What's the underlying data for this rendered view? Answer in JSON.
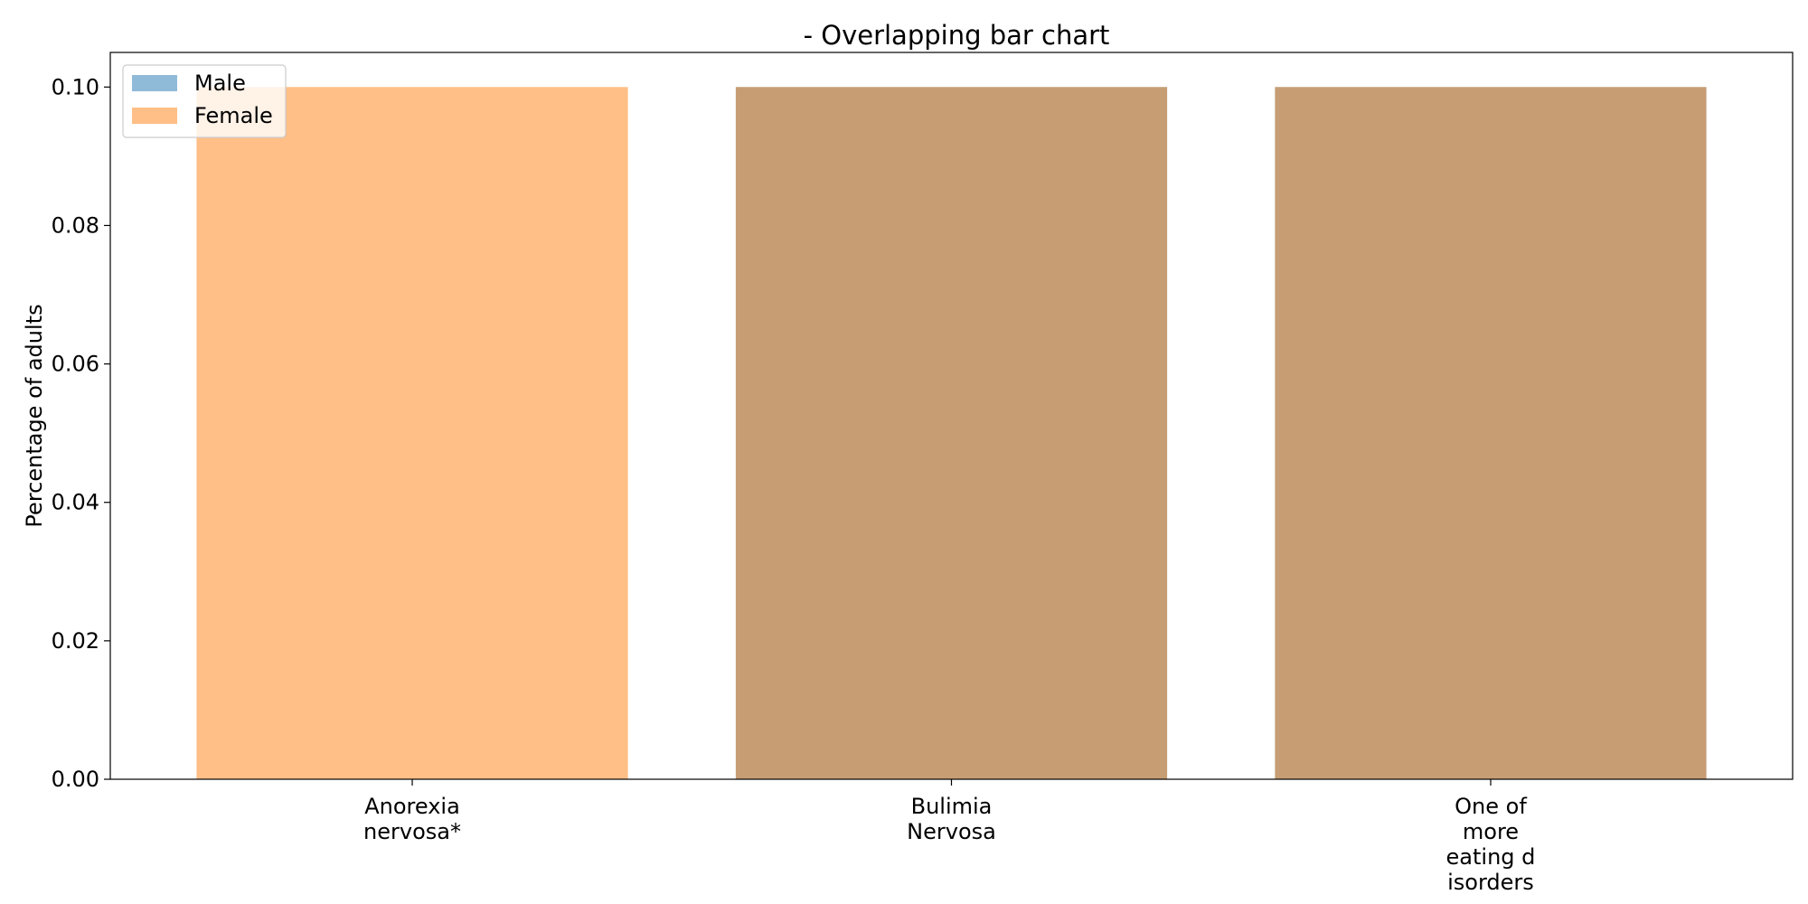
{
  "chart_data": {
    "type": "bar",
    "title": "- Overlapping bar chart",
    "xlabel": "",
    "ylabel": "Percentage of adults",
    "categories": [
      [
        "Anorexia",
        "nervosa*"
      ],
      [
        "Bulimia",
        "Nervosa"
      ],
      [
        "One of",
        "more",
        "eating d",
        "isorders"
      ]
    ],
    "series": [
      {
        "name": "Male",
        "values": [
          0.0,
          0.1,
          0.1
        ],
        "color": "#1f77b4",
        "opacity": 0.5
      },
      {
        "name": "Female",
        "values": [
          0.1,
          0.1,
          0.1
        ],
        "color": "#ff7f0e",
        "opacity": 0.5
      }
    ],
    "ylim": [
      0,
      0.105
    ],
    "yticks": [
      "0.00",
      "0.02",
      "0.04",
      "0.06",
      "0.08",
      "0.10"
    ],
    "grid": false,
    "legend": "upper-left"
  }
}
